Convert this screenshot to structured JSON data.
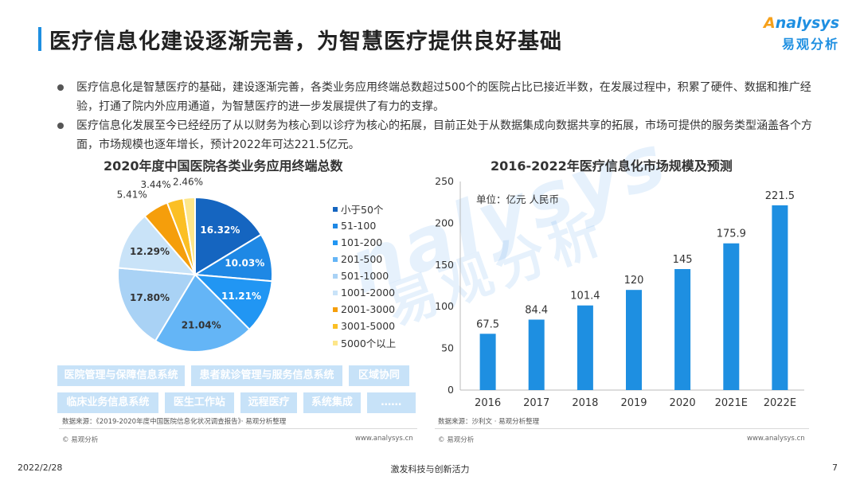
{
  "header": {
    "title": "医疗信息化建设逐渐完善，为智慧医疗提供良好基础",
    "logo_en": "nalysys",
    "logo_en_first": "A",
    "logo_cn": "易观分析"
  },
  "bullets": [
    "医疗信息化是智慧医疗的基础，建设逐渐完善，各类业务应用终端总数超过500个的医院占比已接近半数，在发展过程中，积累了硬件、数据和推广经验，打通了院内外应用通道，为智慧医疗的进一步发展提供了有力的支撑。",
    "医疗信息化发展至今已经经历了从以财务为核心到以诊疗为核心的拓展，目前正处于从数据集成向数据共享的拓展，市场可提供的服务类型涵盖各个方面，市场规模也逐年增长，预计2022年可达221.5亿元。"
  ],
  "chart_data": [
    {
      "type": "pie",
      "title": "2020年度中国医院各类业务应用终端总数",
      "categories": [
        "小于50个",
        "51-100",
        "101-200",
        "201-500",
        "501-1000",
        "1001-2000",
        "2001-3000",
        "3001-5000",
        "5000个以上"
      ],
      "values": [
        16.32,
        10.03,
        11.21,
        21.04,
        17.8,
        12.29,
        5.41,
        3.44,
        2.46
      ],
      "value_labels": [
        "16.32%",
        "10.03%",
        "11.21%",
        "21.04%",
        "17.80%",
        "12.29%",
        "5.41%",
        "3.44%",
        "2.46%"
      ],
      "colors": [
        "#1565c0",
        "#1e88e5",
        "#2196f3",
        "#64b5f6",
        "#a9d2f5",
        "#c9e3f8",
        "#f59e0b",
        "#fbbf24",
        "#fde68a"
      ],
      "legend_position": "right"
    },
    {
      "type": "bar",
      "title": "2016-2022年医疗信息化市场规模及预测",
      "unit_label": "单位：亿元 人民币",
      "categories": [
        "2016",
        "2017",
        "2018",
        "2019",
        "2020",
        "2021E",
        "2022E"
      ],
      "values": [
        67.5,
        84.4,
        101.4,
        120,
        145,
        175.9,
        221.5
      ],
      "value_labels": [
        "67.5",
        "84.4",
        "101.4",
        "120",
        "145",
        "175.9",
        "221.5"
      ],
      "ylim": [
        0,
        250
      ],
      "yticks": [
        "0",
        "50",
        "100",
        "150",
        "200",
        "250"
      ],
      "color": "#1e8fe1",
      "grid": false
    }
  ],
  "tags": [
    [
      "医院管理与保障信息系统",
      "患者就诊管理与服务信息系统",
      "区域协同"
    ],
    [
      "临床业务信息系统",
      "医生工作站",
      "远程医疗",
      "系统集成",
      "……"
    ]
  ],
  "sources": {
    "left": "数据来源：《2019-2020年度中国医院信息化状况调查报告》· 易观分析整理",
    "right": "数据来源：沙利文 · 易观分析整理"
  },
  "copyright": "© 易观分析",
  "website": "www.analysys.cn",
  "footer": {
    "date": "2022/2/28",
    "slogan": "激发科技与创新活力",
    "page": "7"
  },
  "watermark": {
    "en": "nalysys",
    "cn": "易观分析"
  }
}
